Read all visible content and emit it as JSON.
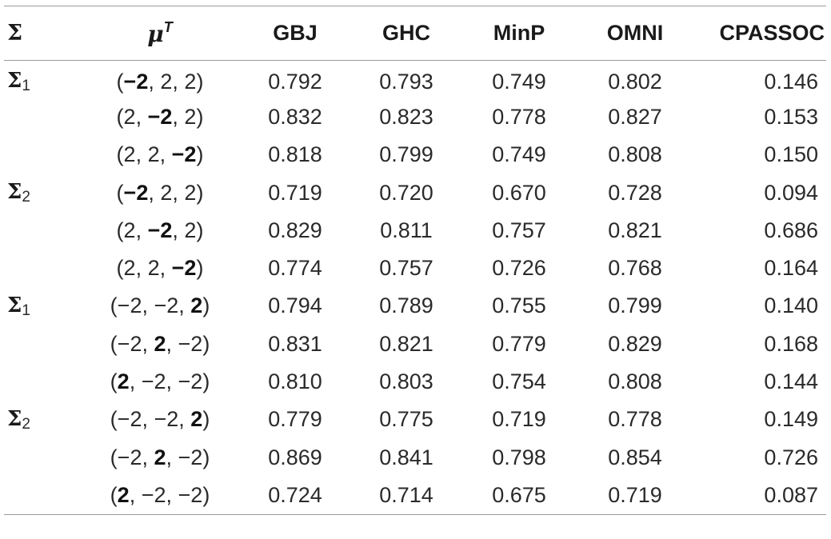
{
  "headers": {
    "sigma": "Σ",
    "mu": "μ",
    "mu_sup": "T",
    "gbj": "GBJ",
    "ghc": "GHC",
    "minp": "MinP",
    "omni": "OMNI",
    "cpassoc": "CPASSOC"
  },
  "rows": [
    {
      "sigma": "Σ",
      "sigma_sub": "1",
      "mu": [
        {
          "v": "−2",
          "bold": true
        },
        {
          "v": "2",
          "bold": false
        },
        {
          "v": "2",
          "bold": false
        }
      ],
      "gbj": "0.792",
      "ghc": "0.793",
      "minp": "0.749",
      "omni": "0.802",
      "cpassoc": "0.146"
    },
    {
      "sigma": "",
      "sigma_sub": "",
      "mu": [
        {
          "v": "2",
          "bold": false
        },
        {
          "v": "−2",
          "bold": true
        },
        {
          "v": "2",
          "bold": false
        }
      ],
      "gbj": "0.832",
      "ghc": "0.823",
      "minp": "0.778",
      "omni": "0.827",
      "cpassoc": "0.153"
    },
    {
      "sigma": "",
      "sigma_sub": "",
      "mu": [
        {
          "v": "2",
          "bold": false
        },
        {
          "v": "2",
          "bold": false
        },
        {
          "v": "−2",
          "bold": true
        }
      ],
      "gbj": "0.818",
      "ghc": "0.799",
      "minp": "0.749",
      "omni": "0.808",
      "cpassoc": "0.150"
    },
    {
      "sigma": "Σ",
      "sigma_sub": "2",
      "mu": [
        {
          "v": "−2",
          "bold": true
        },
        {
          "v": "2",
          "bold": false
        },
        {
          "v": "2",
          "bold": false
        }
      ],
      "gbj": "0.719",
      "ghc": "0.720",
      "minp": "0.670",
      "omni": "0.728",
      "cpassoc": "0.094"
    },
    {
      "sigma": "",
      "sigma_sub": "",
      "mu": [
        {
          "v": "2",
          "bold": false
        },
        {
          "v": "−2",
          "bold": true
        },
        {
          "v": "2",
          "bold": false
        }
      ],
      "gbj": "0.829",
      "ghc": "0.811",
      "minp": "0.757",
      "omni": "0.821",
      "cpassoc": "0.686"
    },
    {
      "sigma": "",
      "sigma_sub": "",
      "mu": [
        {
          "v": "2",
          "bold": false
        },
        {
          "v": "2",
          "bold": false
        },
        {
          "v": "−2",
          "bold": true
        }
      ],
      "gbj": "0.774",
      "ghc": "0.757",
      "minp": "0.726",
      "omni": "0.768",
      "cpassoc": "0.164"
    },
    {
      "sigma": "Σ",
      "sigma_sub": "1",
      "mu": [
        {
          "v": "−2",
          "bold": false
        },
        {
          "v": "−2",
          "bold": false
        },
        {
          "v": "2",
          "bold": true
        }
      ],
      "gbj": "0.794",
      "ghc": "0.789",
      "minp": "0.755",
      "omni": "0.799",
      "cpassoc": "0.140"
    },
    {
      "sigma": "",
      "sigma_sub": "",
      "mu": [
        {
          "v": "−2",
          "bold": false
        },
        {
          "v": "2",
          "bold": true
        },
        {
          "v": "−2",
          "bold": false
        }
      ],
      "gbj": "0.831",
      "ghc": "0.821",
      "minp": "0.779",
      "omni": "0.829",
      "cpassoc": "0.168"
    },
    {
      "sigma": "",
      "sigma_sub": "",
      "mu": [
        {
          "v": "2",
          "bold": true
        },
        {
          "v": "−2",
          "bold": false
        },
        {
          "v": "−2",
          "bold": false
        }
      ],
      "gbj": "0.810",
      "ghc": "0.803",
      "minp": "0.754",
      "omni": "0.808",
      "cpassoc": "0.144"
    },
    {
      "sigma": "Σ",
      "sigma_sub": "2",
      "mu": [
        {
          "v": "−2",
          "bold": false
        },
        {
          "v": "−2",
          "bold": false
        },
        {
          "v": "2",
          "bold": true
        }
      ],
      "gbj": "0.779",
      "ghc": "0.775",
      "minp": "0.719",
      "omni": "0.778",
      "cpassoc": "0.149"
    },
    {
      "sigma": "",
      "sigma_sub": "",
      "mu": [
        {
          "v": "−2",
          "bold": false
        },
        {
          "v": "2",
          "bold": true
        },
        {
          "v": "−2",
          "bold": false
        }
      ],
      "gbj": "0.869",
      "ghc": "0.841",
      "minp": "0.798",
      "omni": "0.854",
      "cpassoc": "0.726"
    },
    {
      "sigma": "",
      "sigma_sub": "",
      "mu": [
        {
          "v": "2",
          "bold": true
        },
        {
          "v": "−2",
          "bold": false
        },
        {
          "v": "−2",
          "bold": false
        }
      ],
      "gbj": "0.724",
      "ghc": "0.714",
      "minp": "0.675",
      "omni": "0.719",
      "cpassoc": "0.087"
    }
  ]
}
